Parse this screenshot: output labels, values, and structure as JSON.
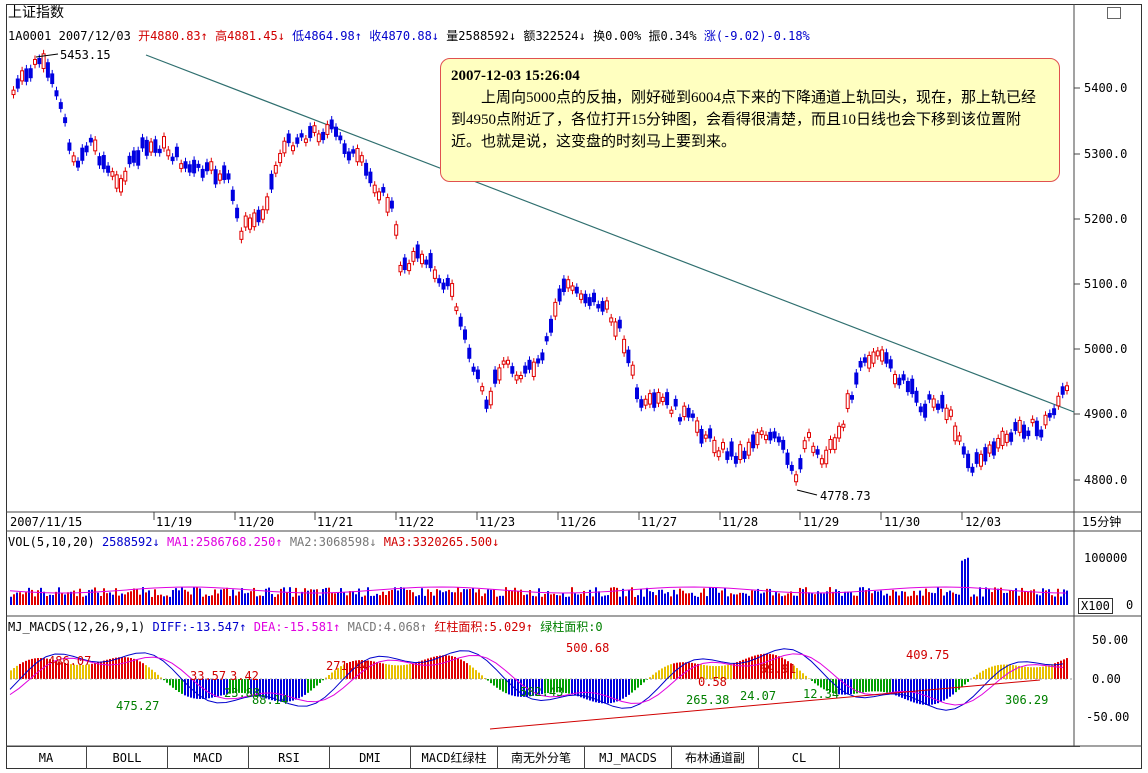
{
  "window": {
    "title": "上证指数",
    "corner_icon": "restore-icon"
  },
  "quote": {
    "code": "1A0001",
    "date": "2007/12/03",
    "open": "开4880.83",
    "high": "高4881.45",
    "low": "低4864.98",
    "close": "收4870.88",
    "volume": "量2588592",
    "amount": "额322524",
    "turnover": "换0.00%",
    "amplitude": "振0.34%",
    "change": "涨(-9.02)-0.18%",
    "arrows": {
      "open": "↑",
      "high": "↓",
      "low": "↑",
      "close": "↓",
      "volume": "↓",
      "amount": "↓"
    }
  },
  "price_axis": [
    "5400.0",
    "5300.0",
    "5200.0",
    "5100.0",
    "5000.0",
    "4900.0",
    "4800.0"
  ],
  "annotations": {
    "max_label": "5453.15",
    "min_label": "4778.73"
  },
  "note": {
    "title": "2007-12-03 15:26:04",
    "body": "上周向5000点的反抽，刚好碰到6004点下来的下降通道上轨回头，现在，那上轨已经到4950点附近了，各位打开15分钟图，会看得很清楚，而且10日线也会下移到该位置附近。也就是说，这变盘的时刻马上要到来。"
  },
  "date_axis": {
    "labels": [
      "2007/11/15",
      "11/19",
      "11/20",
      "11/21",
      "11/22",
      "11/23",
      "11/26",
      "11/27",
      "11/28",
      "11/29",
      "11/30",
      "12/03"
    ],
    "period": "15分钟"
  },
  "vol": {
    "label": "VOL(5,10,20)",
    "value": "2588592",
    "value_arrow": "↓",
    "ma1": "MA1:2586768.250",
    "ma1_arrow": "↑",
    "ma2": "MA2:3068598",
    "ma2_arrow": "↓",
    "ma3": "MA3:3320265.500",
    "ma3_arrow": "↓",
    "axis_top": "100000",
    "axis_bottom": "0",
    "multiplier": "X100"
  },
  "macd": {
    "label": "MJ_MACDS(12,26,9,1)",
    "diff": "DIFF:-13.547",
    "diff_arrow": "↑",
    "dea": "DEA:-15.581",
    "dea_arrow": "↑",
    "macd": "MACD:4.068",
    "macd_arrow": "↑",
    "red_area": "红柱面积:5.029",
    "red_arrow": "↑",
    "green_area": "绿柱面积:0",
    "axis": [
      "50.00",
      "0.00",
      "-50.00"
    ],
    "area_labels": [
      {
        "text": "486.07",
        "color": "#d00000"
      },
      {
        "text": "475.27",
        "color": "#008000"
      },
      {
        "text": "33.57",
        "color": "#d00000"
      },
      {
        "text": "3.42",
        "color": "#d00000"
      },
      {
        "text": "23.88",
        "color": "#008000"
      },
      {
        "text": "88.14",
        "color": "#008000"
      },
      {
        "text": "271.44",
        "color": "#d00000"
      },
      {
        "text": "582.43",
        "color": "#008000"
      },
      {
        "text": "500.68",
        "color": "#d00000"
      },
      {
        "text": "0.58",
        "color": "#d00000"
      },
      {
        "text": "265.38",
        "color": "#008000"
      },
      {
        "text": "24.07",
        "color": "#008000"
      },
      {
        "text": "69.91",
        "color": "#d00000"
      },
      {
        "text": "12.34",
        "color": "#008000"
      },
      {
        "text": "409.75",
        "color": "#d00000"
      },
      {
        "text": "306.29",
        "color": "#008000"
      }
    ]
  },
  "tabs": [
    "MA",
    "BOLL",
    "MACD",
    "RSI",
    "DMI",
    "MACD红绿柱",
    "南无外分笔",
    "MJ_MACDS",
    "布林通道副",
    "CL"
  ]
}
